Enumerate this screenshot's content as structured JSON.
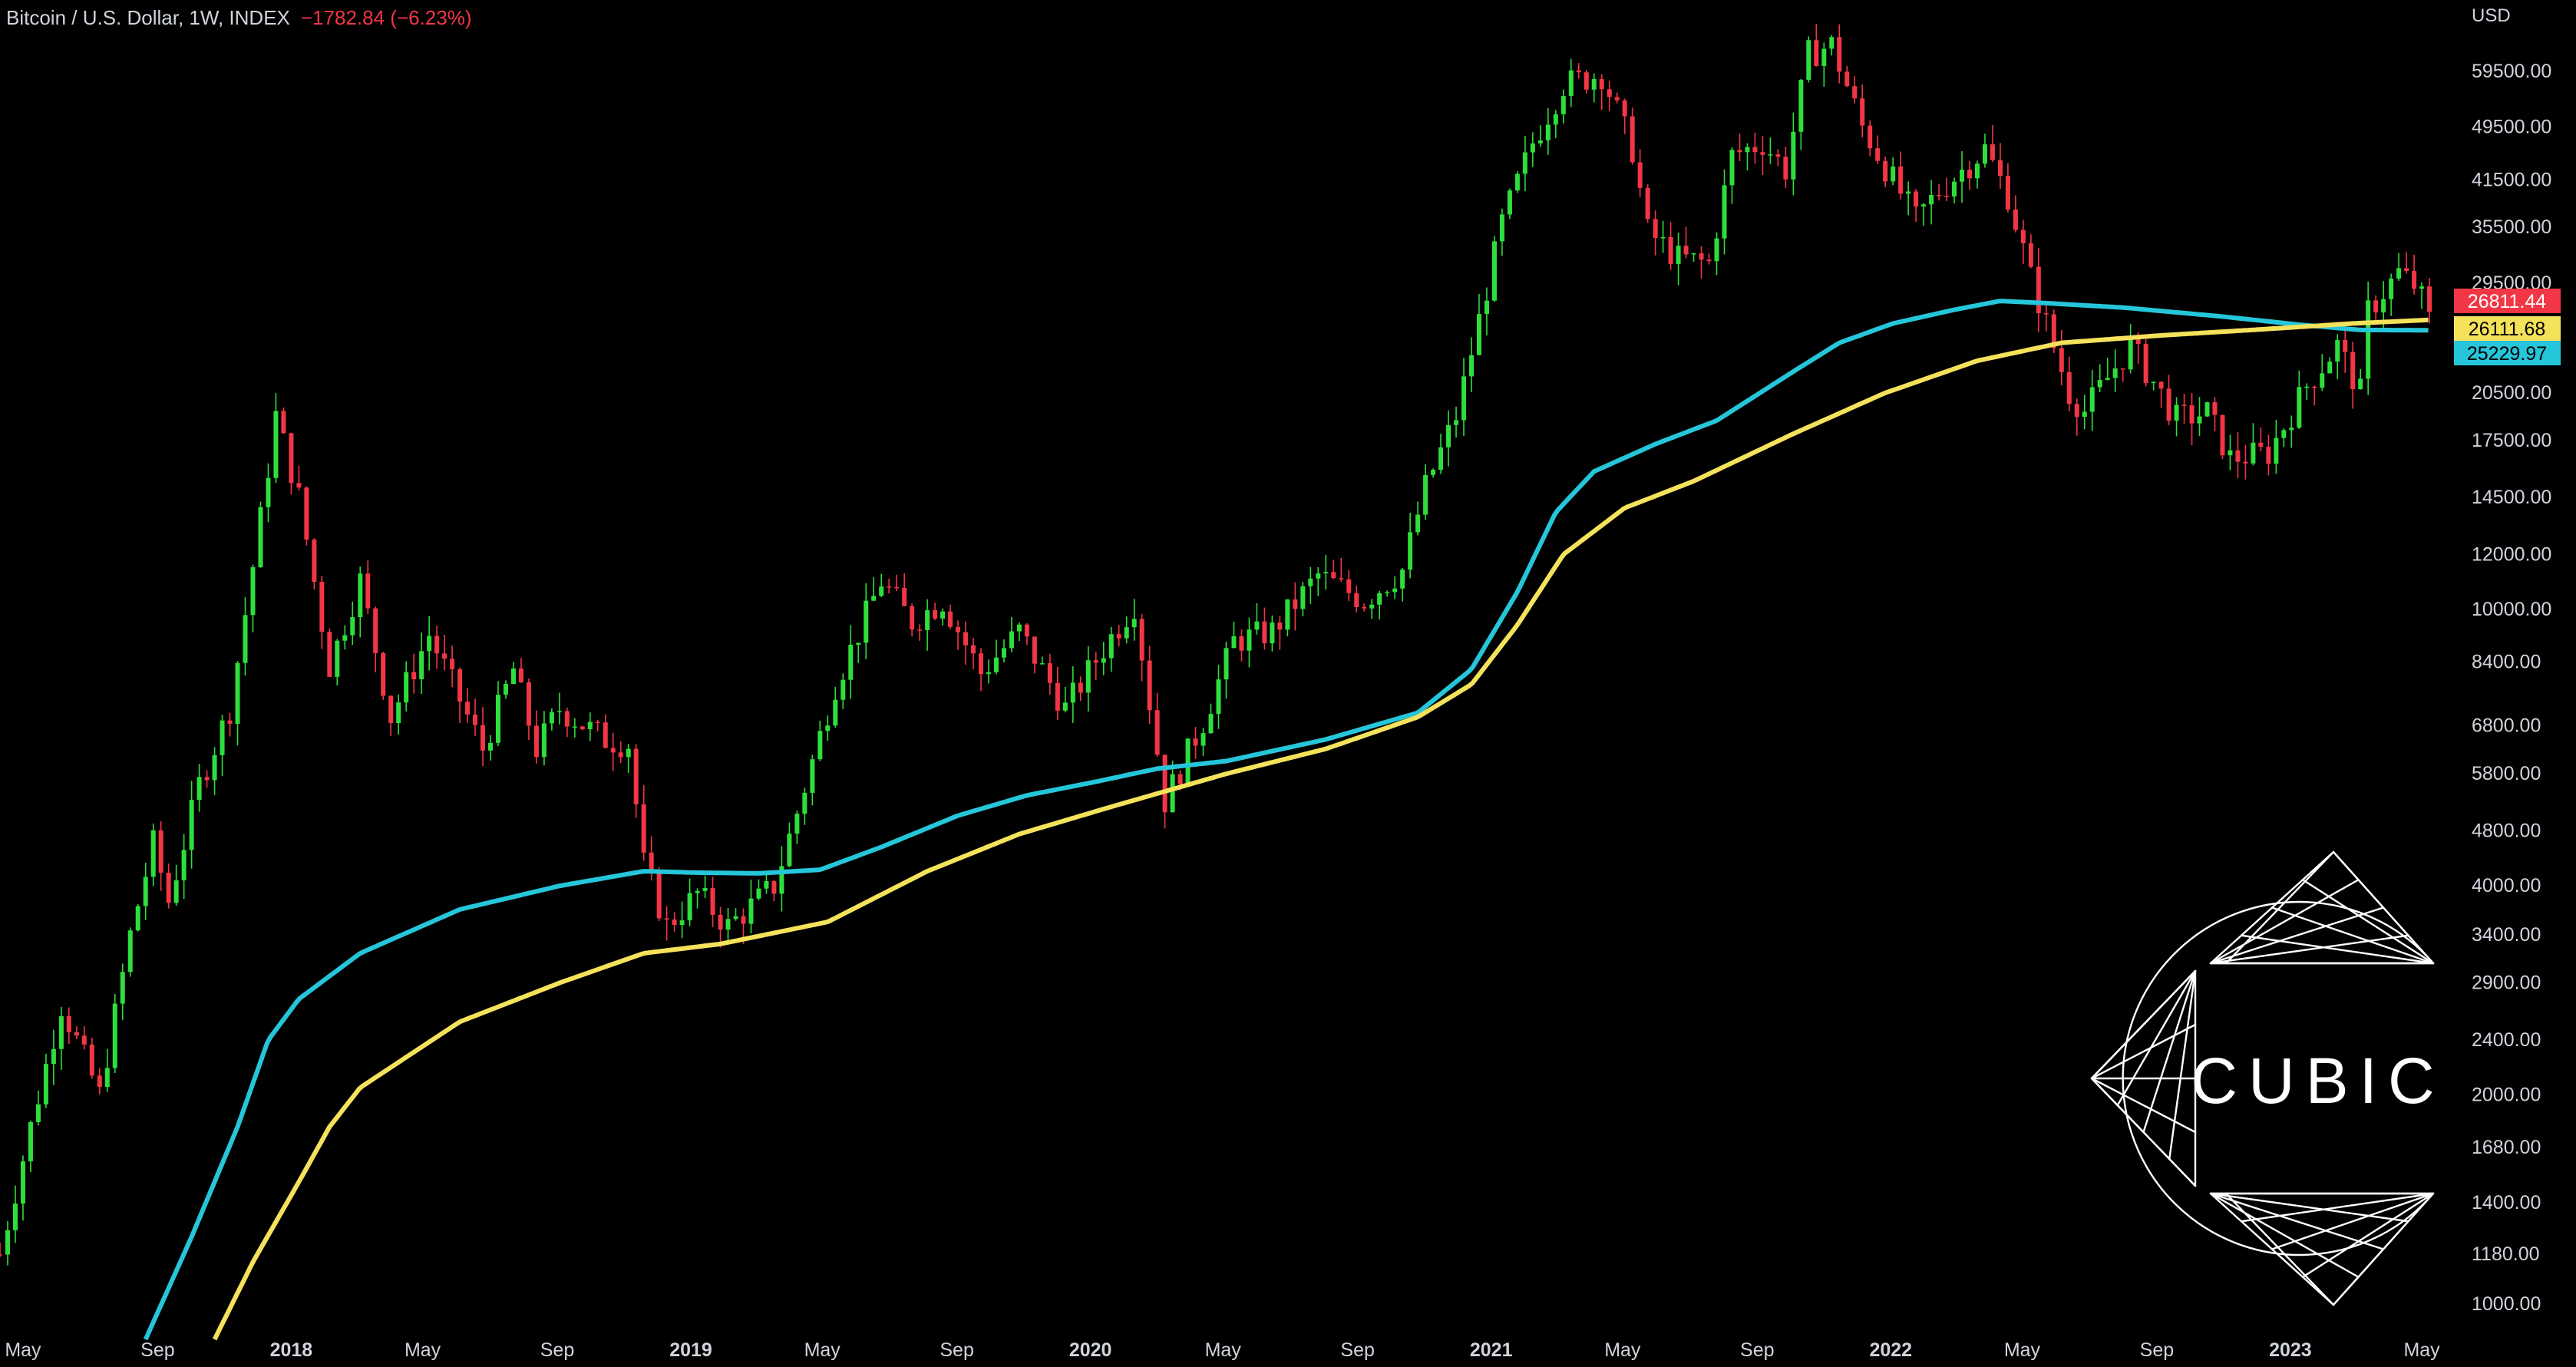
{
  "header": {
    "symbol": "Bitcoin / U.S. Dollar, 1W, INDEX",
    "change": "−1782.84 (−6.23%)"
  },
  "chart_data": {
    "type": "candlestick",
    "currency_label": "USD",
    "log_scale": true,
    "grid": false,
    "x_range": [
      "2017-04-10",
      "2023-05-29"
    ],
    "y_range": [
      890,
      72000
    ],
    "y_ticks": [
      "59500.00",
      "49500.00",
      "41500.00",
      "35500.00",
      "29500.00",
      "20500.00",
      "17500.00",
      "14500.00",
      "12000.00",
      "10000.00",
      "8400.00",
      "6800.00",
      "5800.00",
      "4800.00",
      "4000.00",
      "3400.00",
      "2900.00",
      "2400.00",
      "2000.00",
      "1680.00",
      "1400.00",
      "1180.00",
      "1000.00"
    ],
    "x_ticks": [
      {
        "label": "May",
        "date": "2017-05-01"
      },
      {
        "label": "Sep",
        "date": "2017-09-01"
      },
      {
        "label": "2018",
        "date": "2018-01-01"
      },
      {
        "label": "May",
        "date": "2018-05-01"
      },
      {
        "label": "Sep",
        "date": "2018-09-01"
      },
      {
        "label": "2019",
        "date": "2019-01-01"
      },
      {
        "label": "May",
        "date": "2019-05-01"
      },
      {
        "label": "Sep",
        "date": "2019-09-01"
      },
      {
        "label": "2020",
        "date": "2020-01-01"
      },
      {
        "label": "May",
        "date": "2020-05-01"
      },
      {
        "label": "Sep",
        "date": "2020-09-01"
      },
      {
        "label": "2021",
        "date": "2021-01-01"
      },
      {
        "label": "May",
        "date": "2021-05-01"
      },
      {
        "label": "Sep",
        "date": "2021-09-01"
      },
      {
        "label": "2022",
        "date": "2022-01-01"
      },
      {
        "label": "May",
        "date": "2022-05-01"
      },
      {
        "label": "Sep",
        "date": "2022-09-01"
      },
      {
        "label": "2023",
        "date": "2023-01-01"
      },
      {
        "label": "May",
        "date": "2023-05-01"
      }
    ],
    "price_close_anchors": [
      [
        "2017-04-10",
        1180
      ],
      [
        "2017-05-08",
        1800
      ],
      [
        "2017-06-05",
        2700
      ],
      [
        "2017-07-10",
        2000
      ],
      [
        "2017-08-07",
        3400
      ],
      [
        "2017-08-28",
        4600
      ],
      [
        "2017-09-11",
        3800
      ],
      [
        "2017-10-09",
        5600
      ],
      [
        "2017-11-06",
        7200
      ],
      [
        "2017-12-04",
        13500
      ],
      [
        "2017-12-18",
        19000
      ],
      [
        "2018-01-08",
        14500
      ],
      [
        "2018-02-05",
        8300
      ],
      [
        "2018-03-05",
        11000
      ],
      [
        "2018-04-02",
        7000
      ],
      [
        "2018-05-07",
        9200
      ],
      [
        "2018-06-25",
        6300
      ],
      [
        "2018-07-23",
        8200
      ],
      [
        "2018-08-13",
        6300
      ],
      [
        "2018-09-03",
        7200
      ],
      [
        "2018-10-15",
        6500
      ],
      [
        "2018-11-05",
        6400
      ],
      [
        "2018-11-19",
        4300
      ],
      [
        "2018-12-10",
        3500
      ],
      [
        "2019-01-07",
        3900
      ],
      [
        "2019-02-04",
        3500
      ],
      [
        "2019-03-18",
        4000
      ],
      [
        "2019-04-08",
        5100
      ],
      [
        "2019-05-13",
        7800
      ],
      [
        "2019-06-24",
        11000
      ],
      [
        "2019-07-22",
        9600
      ],
      [
        "2019-08-19",
        10300
      ],
      [
        "2019-09-23",
        8100
      ],
      [
        "2019-10-28",
        9300
      ],
      [
        "2019-12-09",
        7200
      ],
      [
        "2020-01-13",
        8800
      ],
      [
        "2020-02-10",
        10200
      ],
      [
        "2020-03-09",
        5300
      ],
      [
        "2020-04-13",
        6900
      ],
      [
        "2020-05-11",
        9000
      ],
      [
        "2020-06-15",
        9300
      ],
      [
        "2020-07-27",
        11200
      ],
      [
        "2020-09-07",
        10300
      ],
      [
        "2020-10-12",
        11400
      ],
      [
        "2020-11-02",
        15000
      ],
      [
        "2020-11-30",
        19000
      ],
      [
        "2020-12-28",
        29000
      ],
      [
        "2021-01-11",
        36000
      ],
      [
        "2021-02-08",
        47000
      ],
      [
        "2021-03-08",
        57000
      ],
      [
        "2021-04-12",
        59000
      ],
      [
        "2021-05-10",
        46000
      ],
      [
        "2021-05-24",
        35000
      ],
      [
        "2021-06-21",
        32000
      ],
      [
        "2021-07-19",
        31500
      ],
      [
        "2021-08-09",
        45000
      ],
      [
        "2021-09-06",
        47000
      ],
      [
        "2021-09-27",
        43000
      ],
      [
        "2021-10-18",
        63000
      ],
      [
        "2021-11-08",
        65000
      ],
      [
        "2021-12-06",
        49500
      ],
      [
        "2022-01-03",
        41500
      ],
      [
        "2022-01-24",
        36500
      ],
      [
        "2022-02-14",
        40000
      ],
      [
        "2022-03-28",
        46000
      ],
      [
        "2022-04-18",
        39500
      ],
      [
        "2022-05-09",
        30000
      ],
      [
        "2022-06-13",
        20500
      ],
      [
        "2022-06-27",
        19300
      ],
      [
        "2022-08-08",
        24000
      ],
      [
        "2022-09-19",
        18800
      ],
      [
        "2022-10-17",
        19200
      ],
      [
        "2022-11-07",
        16500
      ],
      [
        "2022-12-12",
        16800
      ],
      [
        "2023-01-16",
        21000
      ],
      [
        "2023-02-13",
        24000
      ],
      [
        "2023-03-06",
        20500
      ],
      [
        "2023-03-13",
        26900
      ],
      [
        "2023-04-10",
        30500
      ],
      [
        "2023-04-24",
        29300
      ],
      [
        "2023-05-08",
        26811.44
      ]
    ],
    "series": [
      {
        "color": "#26c6da",
        "last_value": "25229.97",
        "anchors": [
          [
            "2017-08-21",
            890
          ],
          [
            "2017-10-02",
            1250
          ],
          [
            "2017-11-13",
            1800
          ],
          [
            "2017-12-11",
            2400
          ],
          [
            "2018-01-08",
            2750
          ],
          [
            "2018-03-05",
            3200
          ],
          [
            "2018-06-04",
            3700
          ],
          [
            "2018-09-03",
            4000
          ],
          [
            "2018-11-19",
            4200
          ],
          [
            "2019-01-07",
            4180
          ],
          [
            "2019-03-04",
            4170
          ],
          [
            "2019-04-29",
            4220
          ],
          [
            "2019-06-24",
            4550
          ],
          [
            "2019-09-02",
            5050
          ],
          [
            "2019-11-04",
            5400
          ],
          [
            "2020-01-06",
            5650
          ],
          [
            "2020-03-02",
            5900
          ],
          [
            "2020-05-04",
            6050
          ],
          [
            "2020-08-03",
            6500
          ],
          [
            "2020-10-26",
            7100
          ],
          [
            "2020-12-14",
            8200
          ],
          [
            "2021-01-25",
            10600
          ],
          [
            "2021-03-01",
            13800
          ],
          [
            "2021-04-05",
            15800
          ],
          [
            "2021-05-31",
            17300
          ],
          [
            "2021-07-26",
            18700
          ],
          [
            "2021-10-04",
            22000
          ],
          [
            "2021-11-15",
            24200
          ],
          [
            "2022-01-03",
            25800
          ],
          [
            "2022-02-28",
            27000
          ],
          [
            "2022-04-11",
            27800
          ],
          [
            "2022-05-23",
            27600
          ],
          [
            "2022-08-01",
            27200
          ],
          [
            "2022-10-31",
            26400
          ],
          [
            "2023-01-09",
            25700
          ],
          [
            "2023-03-06",
            25250
          ],
          [
            "2023-05-08",
            25229.97
          ]
        ]
      },
      {
        "color": "#f5e25b",
        "last_value": "26111.68",
        "anchors": [
          [
            "2017-10-23",
            890
          ],
          [
            "2017-11-27",
            1150
          ],
          [
            "2018-01-08",
            1500
          ],
          [
            "2018-02-05",
            1800
          ],
          [
            "2018-03-05",
            2050
          ],
          [
            "2018-06-04",
            2550
          ],
          [
            "2018-09-03",
            2900
          ],
          [
            "2018-11-19",
            3200
          ],
          [
            "2019-01-28",
            3300
          ],
          [
            "2019-05-06",
            3550
          ],
          [
            "2019-08-05",
            4200
          ],
          [
            "2019-10-28",
            4750
          ],
          [
            "2020-01-20",
            5200
          ],
          [
            "2020-05-04",
            5800
          ],
          [
            "2020-08-03",
            6300
          ],
          [
            "2020-10-26",
            7000
          ],
          [
            "2020-12-14",
            7800
          ],
          [
            "2021-01-25",
            9500
          ],
          [
            "2021-03-08",
            12000
          ],
          [
            "2021-05-03",
            14000
          ],
          [
            "2021-07-05",
            15300
          ],
          [
            "2021-10-04",
            17900
          ],
          [
            "2021-12-27",
            20500
          ],
          [
            "2022-03-21",
            22800
          ],
          [
            "2022-06-06",
            24200
          ],
          [
            "2022-09-05",
            24800
          ],
          [
            "2022-12-05",
            25300
          ],
          [
            "2023-02-27",
            25800
          ],
          [
            "2023-05-08",
            26111.68
          ]
        ]
      }
    ],
    "price_label": {
      "value": "26811.44",
      "color": "#f23645"
    }
  },
  "logo": {
    "text": "CUBIC"
  }
}
